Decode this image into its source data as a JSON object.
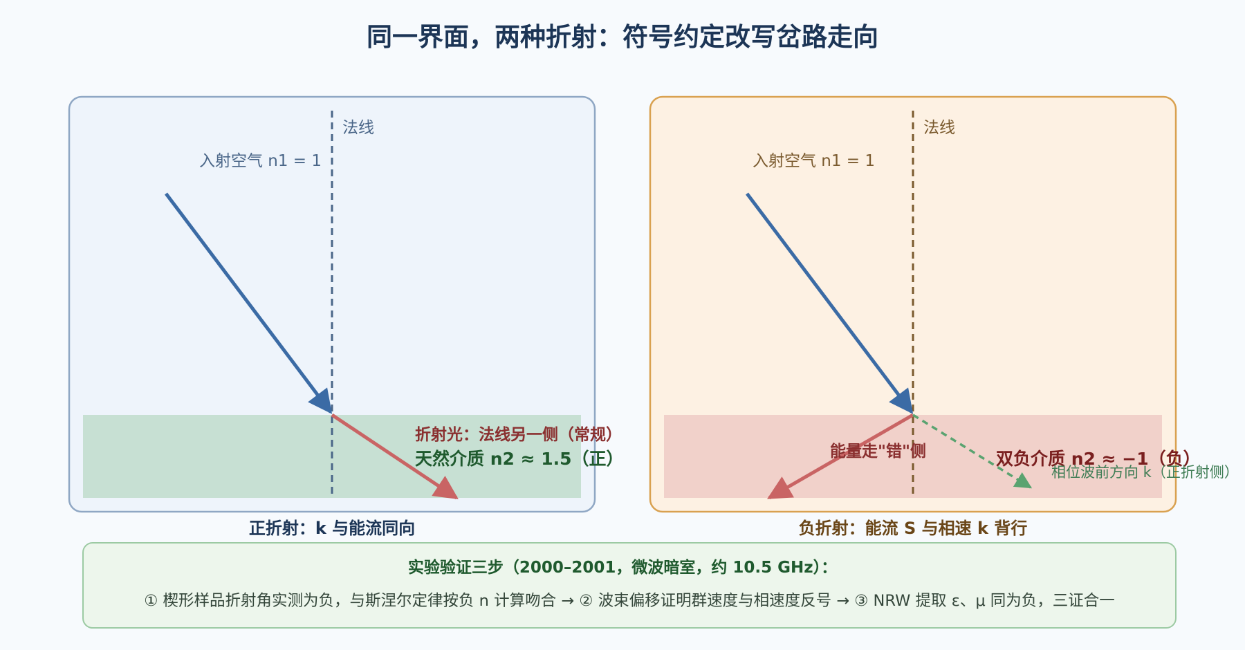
{
  "title": "同一界面，两种折射：符号约定改写岔路走向",
  "panels": {
    "positive": {
      "normal_label": "法线",
      "incident_label": "入射空气 n1 = 1",
      "refracted_label": "折射光：法线另一侧（常规）",
      "medium_label": "天然介质 n2 ≈ 1.5（正）",
      "caption": "正折射：k 与能流同向"
    },
    "negative": {
      "normal_label": "法线",
      "incident_label": "入射空气 n1 = 1",
      "energy_label": "能量走\"错\"侧",
      "medium_label": "双负介质 n2 ≈ −1（负）",
      "phase_label": "相位波前方向 k（正折射侧）",
      "caption": "负折射：能流 S 与相速 k 背行"
    }
  },
  "experiment": {
    "title": "实验验证三步（2000–2001，微波暗室，约 10.5 GHz）：",
    "text": "① 楔形样品折射角实测为负，与斯涅尔定律按负 n 计算吻合 → ② 波束偏移证明群速度与相速度反号 → ③ NRW 提取 ε、μ 同为负，三证合一"
  },
  "colors": {
    "incident": "#3b6ba5",
    "refracted": "#c96464",
    "phase": "#5aa370",
    "positive_panel_bg": "#eef4fb",
    "positive_panel_border": "#8fa7c4",
    "positive_medium": "#c7e0d3",
    "negative_panel_bg": "#fdf1e3",
    "negative_panel_border": "#d9a150",
    "negative_medium": "#f1d1ca",
    "experiment_bg": "#edf6ec",
    "experiment_border": "#9ccaa3"
  }
}
